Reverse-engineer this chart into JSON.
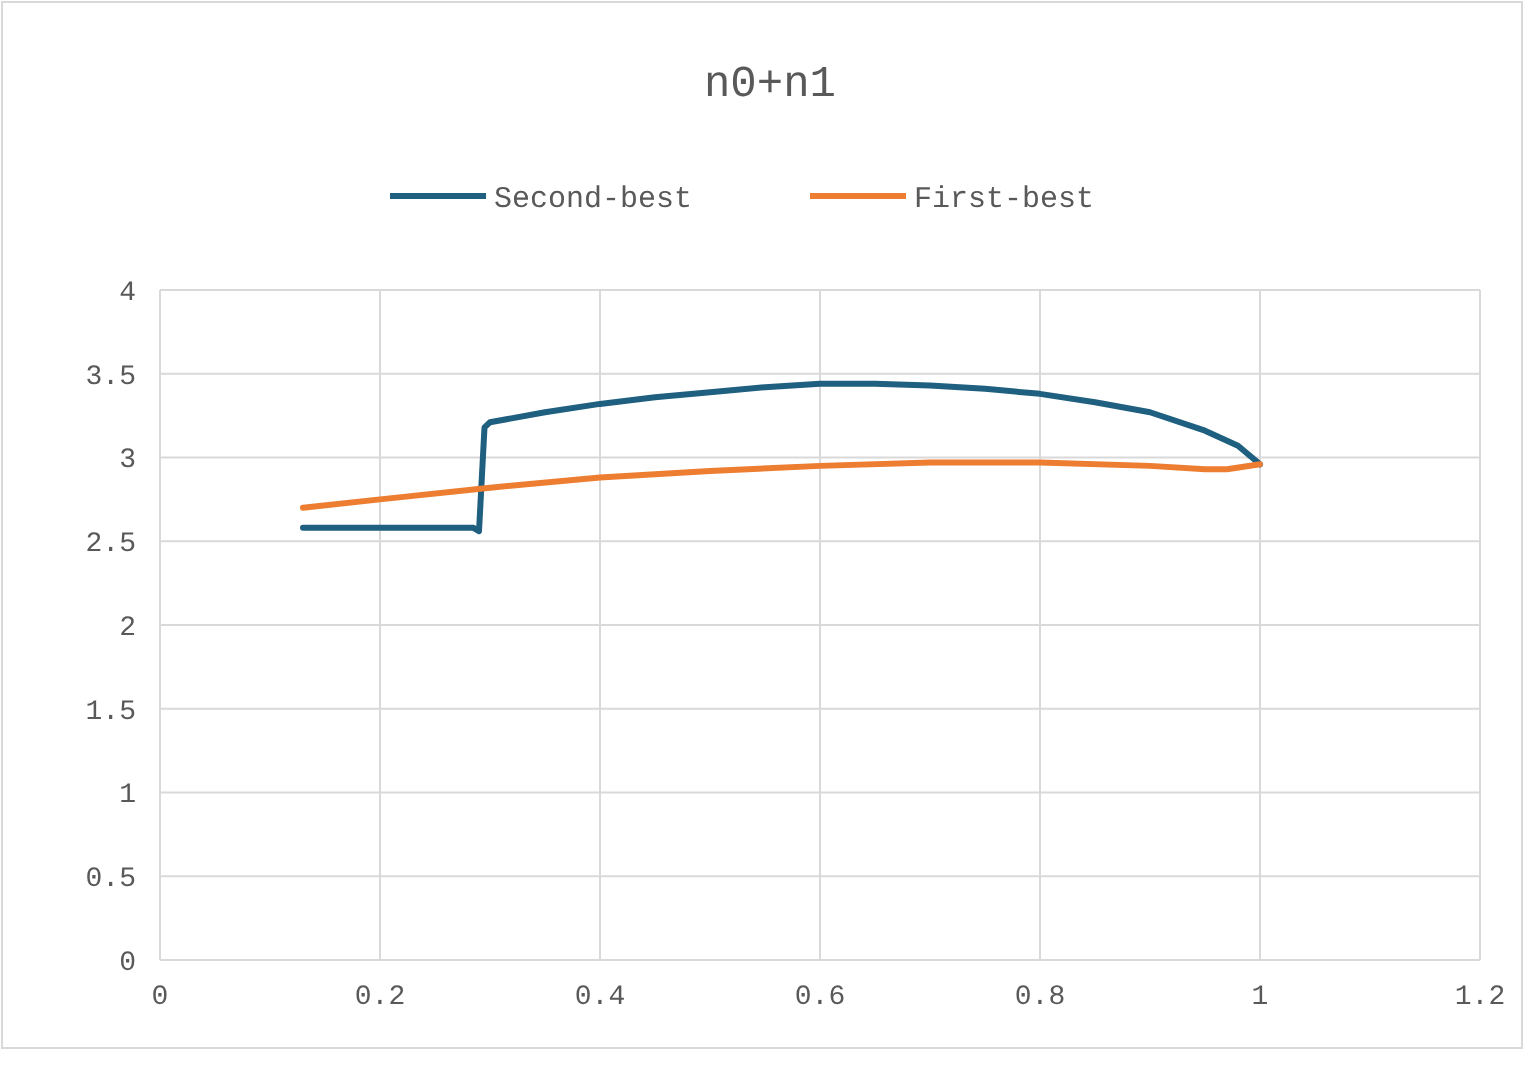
{
  "chart_data": {
    "type": "line",
    "title": "n0+n1",
    "legend": "top",
    "grid": true,
    "line_style": "solid",
    "xlim": [
      0,
      1.2
    ],
    "xticks": [
      0,
      0.2,
      0.4,
      0.6,
      0.8,
      1,
      1.2
    ],
    "ylim": [
      0,
      4
    ],
    "yticks": [
      0,
      0.5,
      1,
      1.5,
      2,
      2.5,
      3,
      3.5,
      4
    ],
    "series": [
      {
        "name": "Second-best",
        "color": "#1f5f7f",
        "x": [
          0.13,
          0.2,
          0.285,
          0.29,
          0.295,
          0.3,
          0.35,
          0.4,
          0.45,
          0.5,
          0.55,
          0.6,
          0.65,
          0.7,
          0.75,
          0.8,
          0.85,
          0.9,
          0.95,
          0.98,
          1
        ],
        "values": [
          2.58,
          2.58,
          2.58,
          2.56,
          3.18,
          3.21,
          3.27,
          3.32,
          3.36,
          3.39,
          3.42,
          3.44,
          3.44,
          3.43,
          3.41,
          3.38,
          3.33,
          3.27,
          3.16,
          3.07,
          2.96
        ]
      },
      {
        "name": "First-best",
        "color": "#ed7d31",
        "x": [
          0.13,
          0.2,
          0.3,
          0.4,
          0.5,
          0.6,
          0.7,
          0.8,
          0.9,
          0.95,
          0.97,
          1
        ],
        "values": [
          2.7,
          2.75,
          2.82,
          2.88,
          2.92,
          2.95,
          2.97,
          2.97,
          2.95,
          2.93,
          2.93,
          2.96
        ]
      }
    ]
  }
}
